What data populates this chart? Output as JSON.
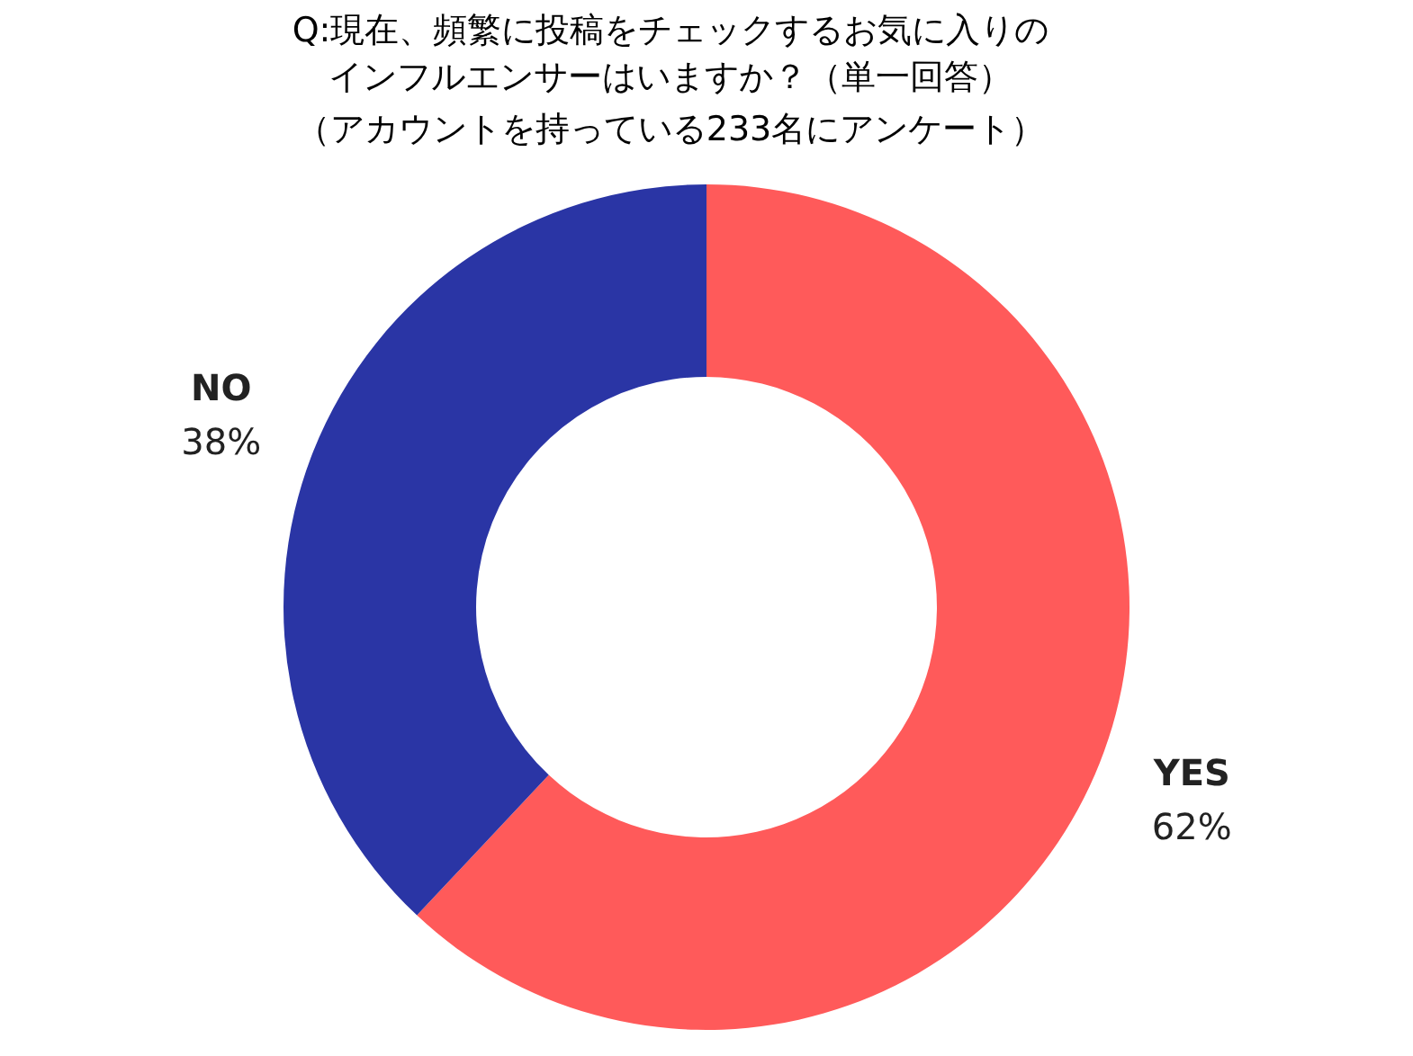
{
  "chart_data": {
    "type": "donut",
    "title": "Q:現在、頻繁に投稿をチェックするお気に入りのインフルエンサーはいますか？（単一回答）",
    "subtitle": "（アカウントを持っている233名にアンケート）",
    "categories": [
      "YES",
      "NO"
    ],
    "values": [
      62,
      38
    ],
    "colors": [
      "#ff5a5a",
      "#2a35a5"
    ],
    "value_labels": [
      "62%",
      "38%"
    ],
    "legend": false
  }
}
